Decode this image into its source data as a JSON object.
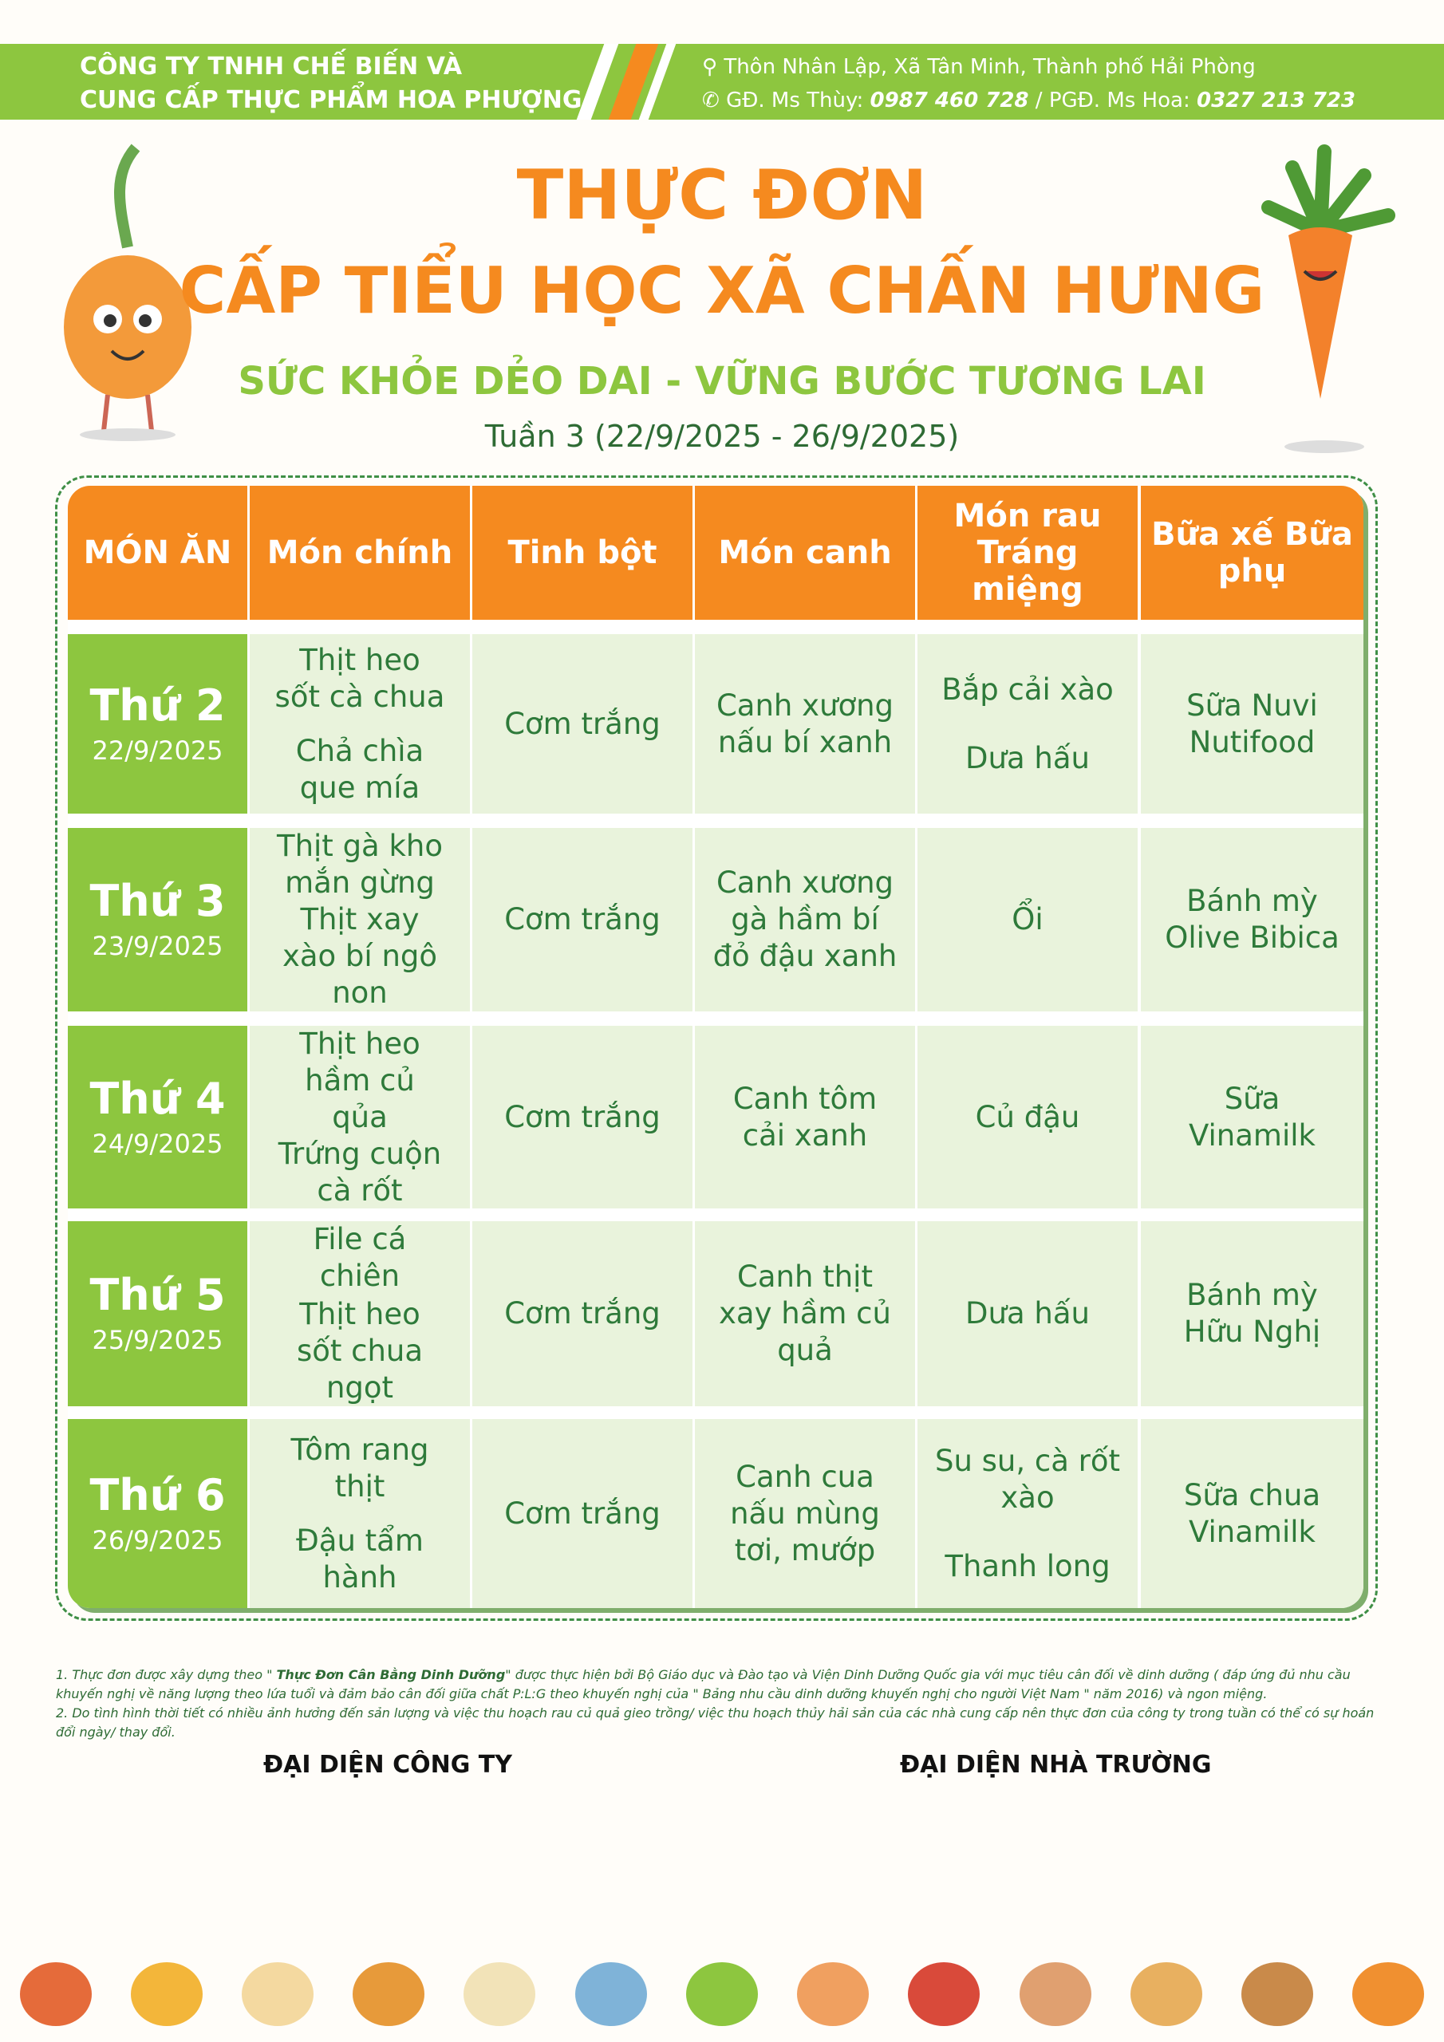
{
  "header": {
    "company_line1": "CÔNG TY TNHH CHẾ BIẾN VÀ",
    "company_line2": "CUNG CẤP THỰC PHẨM HOA PHƯỢNG",
    "address": "Thôn Nhân Lập, Xã Tân Minh, Thành phố Hải Phòng",
    "contact_gd_label": "GĐ. Ms Thùy: ",
    "contact_gd_phone": "0987 460 728",
    "contact_sep": " / ",
    "contact_pgd_label": "PGĐ. Ms Hoa: ",
    "contact_pgd_phone": "0327 213 723",
    "icons": [
      "location-pin-icon",
      "phone-icon"
    ]
  },
  "title": {
    "line1": "THỰC ĐƠN",
    "line2": "CẤP TIỂU HỌC XÃ CHẤN HƯNG",
    "slogan": "SỨC KHỎE DẺO DAI - VỮNG BƯỚC TƯƠNG LAI",
    "week": "Tuần 3 (22/9/2025 - 26/9/2025)"
  },
  "table": {
    "headers": [
      "MÓN ĂN",
      "Món chính",
      "Tinh bột",
      "Món canh",
      "Món rau Tráng miệng",
      "Bữa xế Bữa phụ"
    ],
    "rows": [
      {
        "day": "Thứ 2",
        "date": "22/9/2025",
        "main1": "Thịt heo sốt cà chua",
        "main2": "Chả chìa que mía",
        "starch": "Cơm trắng",
        "soup": "Canh xương nấu bí xanh",
        "veg": "Bắp cải xào",
        "dessert": "Dưa hấu",
        "snack": "Sữa Nuvi Nutifood"
      },
      {
        "day": "Thứ 3",
        "date": "23/9/2025",
        "main1": "Thịt gà kho mắn gừng",
        "main2": "Thịt xay xào bí ngô non",
        "starch": "Cơm trắng",
        "soup": "Canh xương gà hầm bí đỏ đậu xanh",
        "veg": "",
        "dessert": "Ổi",
        "snack": "Bánh mỳ Olive Bibica"
      },
      {
        "day": "Thứ 4",
        "date": "24/9/2025",
        "main1": "Thịt heo hầm củ qủa",
        "main2": "Trứng cuộn cà rốt",
        "starch": "Cơm trắng",
        "soup": "Canh tôm cải xanh",
        "veg": "",
        "dessert": "Củ đậu",
        "snack": "Sữa Vinamilk"
      },
      {
        "day": "Thứ 5",
        "date": "25/9/2025",
        "main1": "File cá chiên",
        "main2": "Thịt heo sốt chua ngọt",
        "starch": "Cơm trắng",
        "soup": "Canh thịt xay hầm củ quả",
        "veg": "",
        "dessert": "Dưa hấu",
        "snack": "Bánh mỳ Hữu Nghị"
      },
      {
        "day": "Thứ 6",
        "date": "26/9/2025",
        "main1": "Tôm rang thịt",
        "main2": "Đậu tẩm hành",
        "starch": "Cơm trắng",
        "soup": "Canh cua nấu mùng tơi, mướp",
        "veg": "Su su, cà rốt xào",
        "dessert": "Thanh long",
        "snack": "Sữa chua Vinamilk"
      }
    ]
  },
  "notes": {
    "n1_prefix": "1. Thực đơn được xây dựng theo \" ",
    "n1_bold": "Thực Đơn Cân Bằng Dinh Dưỡng",
    "n1_rest": "\" được thực hiện bởi Bộ Giáo dục và Đào tạo và Viện Dinh Dưỡng Quốc gia với mục tiêu cân đối về dinh dưỡng ( đáp ứng đủ nhu cầu khuyến nghị về năng lượng theo lứa tuổi và đảm bảo cân đối giữa chất P:L:G theo khuyến nghị của \" Bảng nhu cầu dinh dưỡng khuyến nghị cho người Việt Nam \" năm 2016) và ngon miệng.",
    "n2": "2. Do tình hình thời tiết có nhiều ảnh hưởng đến sản lượng và việc thu hoạch rau củ quả gieo trồng/ việc thu hoạch thủy hải sản của các nhà cung cấp nên thực đơn của công ty trong tuần có thể có sự hoán đổi ngày/ thay đổi."
  },
  "signatures": {
    "company": "ĐẠI DIỆN CÔNG TY",
    "school": "ĐẠI DIỆN NHÀ TRƯỜNG"
  },
  "colors": {
    "green": "#8dc63f",
    "orange": "#f58a1f",
    "cell": "#e9f3dc",
    "text": "#2e7a3a"
  }
}
